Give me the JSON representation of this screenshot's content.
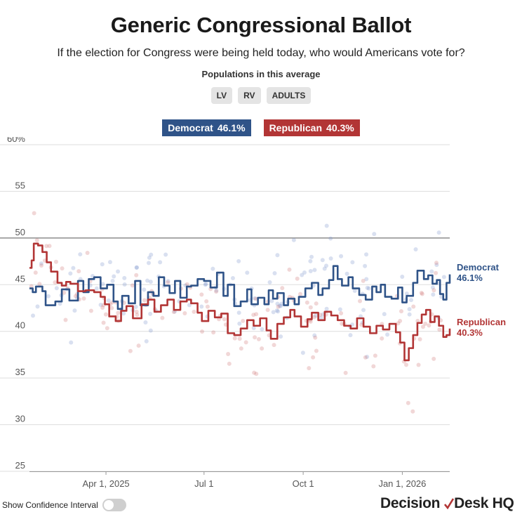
{
  "header": {
    "title": "Generic Congressional Ballot",
    "subtitle": "If the election for Congress were being held today, who would Americans vote for?",
    "populations_label": "Populations in this average",
    "populations": [
      "LV",
      "RV",
      "ADULTS"
    ]
  },
  "legend": {
    "democrat": {
      "name": "Democrat",
      "value": "46.1%"
    },
    "republican": {
      "name": "Republican",
      "value": "40.3%"
    }
  },
  "end_labels": {
    "democrat": {
      "name": "Democrat",
      "value": "46.1%"
    },
    "republican": {
      "name": "Republican",
      "value": "40.3%"
    }
  },
  "controls": {
    "confidence_label": "Show Confidence Interval"
  },
  "brand": {
    "part1": "Decision",
    "part2": "Desk HQ"
  },
  "colors": {
    "democrat": "#2f5388",
    "republican": "#b23535",
    "grid": "#dddddd",
    "fifty_line": "#555555"
  },
  "chart_data": {
    "type": "line",
    "title": "Generic Congressional Ballot",
    "x_unit": "days since Jan 20, 2025",
    "xlim": [
      0,
      390
    ],
    "ylim": [
      25,
      60
    ],
    "yticks": [
      25,
      30,
      35,
      40,
      45,
      50,
      55,
      60
    ],
    "ytick_labels": [
      "25",
      "30",
      "35",
      "40",
      "45",
      "50",
      "55",
      "60%"
    ],
    "xticks": [
      {
        "x": 71,
        "label": "Apr 1, 2025"
      },
      {
        "x": 162,
        "label": "Jul 1"
      },
      {
        "x": 254,
        "label": "Oct 1"
      },
      {
        "x": 346,
        "label": "Jan 1, 2026"
      }
    ],
    "reference_line": 50,
    "series": [
      {
        "name": "Democrat",
        "final": 46.1,
        "x": [
          0,
          3,
          6,
          12,
          15,
          24,
          30,
          37,
          45,
          50,
          55,
          60,
          66,
          72,
          78,
          82,
          86,
          92,
          98,
          103,
          110,
          115,
          120,
          125,
          130,
          135,
          140,
          146,
          150,
          156,
          162,
          168,
          174,
          180,
          184,
          190,
          196,
          202,
          206,
          212,
          218,
          222,
          226,
          230,
          236,
          240,
          246,
          250,
          256,
          262,
          268,
          272,
          278,
          282,
          286,
          290,
          296,
          300,
          306,
          312,
          318,
          322,
          326,
          330,
          336,
          342,
          346,
          350,
          356,
          360,
          366,
          370,
          374,
          378,
          381,
          384,
          387,
          390
        ],
        "y": [
          44.6,
          44.2,
          44.8,
          44.3,
          42.8,
          43.2,
          44.5,
          43.3,
          45.4,
          44.2,
          45.6,
          45.8,
          44.6,
          45.0,
          43.2,
          42.4,
          43.8,
          43.0,
          45.4,
          42.8,
          44.2,
          43.8,
          45.8,
          44.9,
          44.1,
          45.4,
          43.6,
          44.8,
          44.9,
          45.6,
          45.4,
          44.7,
          46.3,
          43.8,
          45.0,
          42.7,
          43.2,
          44.5,
          42.9,
          43.6,
          42.9,
          44.4,
          43.5,
          44.1,
          42.8,
          43.5,
          42.9,
          43.7,
          44.6,
          45.2,
          43.9,
          44.6,
          45.5,
          47.0,
          45.6,
          44.9,
          45.8,
          44.6,
          43.9,
          43.4,
          44.8,
          44.2,
          45.0,
          43.7,
          43.5,
          44.7,
          43.1,
          43.8,
          45.2,
          46.5,
          45.6,
          46.0,
          45.1,
          45.5,
          44.0,
          43.4,
          45.2,
          46.1
        ]
      },
      {
        "name": "Republican",
        "final": 40.3,
        "x": [
          0,
          2,
          4,
          8,
          12,
          16,
          20,
          26,
          30,
          34,
          38,
          45,
          52,
          60,
          66,
          70,
          74,
          80,
          85,
          90,
          96,
          104,
          110,
          116,
          122,
          128,
          134,
          140,
          146,
          150,
          156,
          160,
          166,
          172,
          178,
          184,
          190,
          196,
          202,
          208,
          214,
          220,
          224,
          230,
          236,
          242,
          246,
          252,
          258,
          262,
          268,
          274,
          280,
          286,
          292,
          298,
          304,
          310,
          316,
          322,
          328,
          334,
          340,
          344,
          348,
          352,
          356,
          360,
          364,
          368,
          372,
          376,
          380,
          384,
          387,
          390
        ],
        "y": [
          46.8,
          47.6,
          49.4,
          49.2,
          48.5,
          47.4,
          46.4,
          45.2,
          44.9,
          45.3,
          45.1,
          44.3,
          44.4,
          44.2,
          43.7,
          42.9,
          41.6,
          41.1,
          42.2,
          42.7,
          41.4,
          42.9,
          43.4,
          42.1,
          42.8,
          43.4,
          42.3,
          43.2,
          43.4,
          43.0,
          42.0,
          41.1,
          42.2,
          41.5,
          41.9,
          39.8,
          39.6,
          40.3,
          41.2,
          40.6,
          41.4,
          40.1,
          39.2,
          40.8,
          41.5,
          42.3,
          41.6,
          40.5,
          41.3,
          42.0,
          41.2,
          42.1,
          41.7,
          41.2,
          40.6,
          40.3,
          41.4,
          40.5,
          39.8,
          40.6,
          40.2,
          40.8,
          39.9,
          38.8,
          36.9,
          38.2,
          39.6,
          40.9,
          41.8,
          42.3,
          41.0,
          41.6,
          40.6,
          39.4,
          39.6,
          40.3
        ]
      }
    ]
  }
}
